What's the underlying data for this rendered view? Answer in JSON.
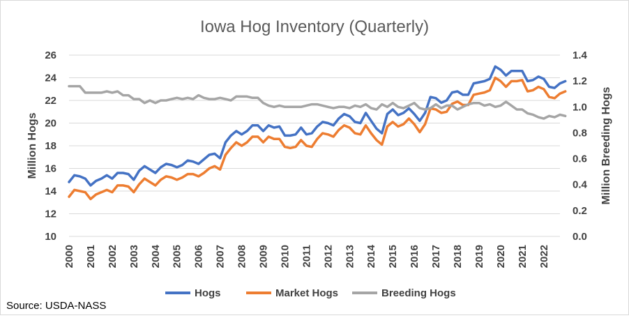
{
  "chart_data": {
    "type": "line",
    "title": "Iowa Hog Inventory (Quarterly)",
    "ylabel": "Million Hogs",
    "y2label": "Million Breeding Hogs",
    "ylim": [
      10,
      26
    ],
    "y2lim": [
      0.0,
      1.4
    ],
    "y_ticks": [
      "10",
      "12",
      "14",
      "16",
      "18",
      "20",
      "22",
      "24",
      "26"
    ],
    "y2_ticks": [
      "0.0",
      "0.2",
      "0.4",
      "0.6",
      "0.8",
      "1.0",
      "1.2",
      "1.4"
    ],
    "x_ticks": [
      "2000",
      "2001",
      "2002",
      "2003",
      "2004",
      "2005",
      "2006",
      "2007",
      "2008",
      "2009",
      "2010",
      "2011",
      "2012",
      "2013",
      "2014",
      "2015",
      "2016",
      "2017",
      "2018",
      "2019",
      "2020",
      "2021",
      "2022"
    ],
    "xlim": [
      2000,
      2022.75
    ],
    "grid": true,
    "legend_position": "bottom",
    "source": "Source: USDA-NASS",
    "series": [
      {
        "name": "Hogs",
        "axis": "left",
        "color": "#4472C4",
        "values": [
          14.8,
          15.4,
          15.3,
          15.1,
          14.5,
          14.9,
          15.1,
          15.4,
          15.1,
          15.6,
          15.6,
          15.5,
          15.0,
          15.8,
          16.2,
          15.9,
          15.6,
          16.1,
          16.4,
          16.3,
          16.1,
          16.3,
          16.7,
          16.6,
          16.4,
          16.8,
          17.2,
          17.3,
          16.9,
          18.3,
          18.9,
          19.3,
          19.0,
          19.3,
          19.8,
          19.8,
          19.3,
          19.8,
          19.6,
          19.7,
          18.9,
          18.9,
          19.0,
          19.6,
          19.0,
          19.1,
          19.7,
          20.1,
          20.0,
          19.8,
          20.4,
          20.8,
          20.6,
          20.1,
          20.0,
          20.9,
          20.2,
          19.5,
          19.1,
          20.8,
          21.2,
          20.7,
          20.9,
          21.3,
          20.8,
          20.2,
          20.9,
          22.3,
          22.2,
          21.8,
          22.0,
          22.7,
          22.8,
          22.5,
          22.5,
          23.5,
          23.6,
          23.7,
          23.9,
          25.0,
          24.7,
          24.2,
          24.6,
          24.6,
          24.6,
          23.7,
          23.8,
          24.1,
          23.9,
          23.2,
          23.1,
          23.5,
          23.7
        ]
      },
      {
        "name": "Market Hogs",
        "axis": "left",
        "color": "#ED7D31",
        "values": [
          13.5,
          14.1,
          14.0,
          13.9,
          13.3,
          13.7,
          13.9,
          14.1,
          13.9,
          14.5,
          14.5,
          14.4,
          13.9,
          14.6,
          15.1,
          14.8,
          14.5,
          15.0,
          15.3,
          15.2,
          15.0,
          15.2,
          15.5,
          15.5,
          15.3,
          15.6,
          16.0,
          16.2,
          15.9,
          17.2,
          17.8,
          18.3,
          18.0,
          18.3,
          18.8,
          18.8,
          18.3,
          18.8,
          18.6,
          18.6,
          17.9,
          17.8,
          17.9,
          18.5,
          18.0,
          17.9,
          18.6,
          19.1,
          19.0,
          18.8,
          19.4,
          19.8,
          19.6,
          19.1,
          19.0,
          19.8,
          19.1,
          18.5,
          18.1,
          19.7,
          20.1,
          19.7,
          19.9,
          20.4,
          19.9,
          19.2,
          19.9,
          21.3,
          21.2,
          20.9,
          21.0,
          21.7,
          21.9,
          21.6,
          21.6,
          22.5,
          22.6,
          22.7,
          22.9,
          24.0,
          23.7,
          23.2,
          23.7,
          23.7,
          23.8,
          22.8,
          22.9,
          23.2,
          23.0,
          22.3,
          22.2,
          22.6,
          22.8
        ]
      },
      {
        "name": "Breeding Hogs",
        "axis": "right",
        "color": "#A5A5A5",
        "values": [
          1.16,
          1.16,
          1.16,
          1.11,
          1.11,
          1.11,
          1.11,
          1.12,
          1.11,
          1.12,
          1.09,
          1.09,
          1.06,
          1.06,
          1.03,
          1.05,
          1.03,
          1.05,
          1.05,
          1.06,
          1.07,
          1.06,
          1.07,
          1.06,
          1.09,
          1.07,
          1.06,
          1.06,
          1.07,
          1.06,
          1.05,
          1.08,
          1.08,
          1.08,
          1.07,
          1.07,
          1.03,
          1.01,
          1.0,
          1.01,
          1.0,
          1.0,
          1.0,
          1.0,
          1.01,
          1.02,
          1.02,
          1.01,
          1.0,
          0.99,
          1.0,
          1.0,
          0.99,
          1.01,
          1.0,
          1.02,
          0.99,
          0.98,
          1.02,
          1.0,
          1.03,
          1.0,
          0.99,
          1.01,
          1.03,
          0.99,
          0.98,
          0.99,
          1.02,
          0.99,
          1.01,
          1.01,
          0.98,
          1.0,
          1.02,
          1.03,
          1.03,
          1.01,
          1.02,
          1.0,
          1.01,
          1.04,
          1.01,
          0.98,
          0.98,
          0.95,
          0.94,
          0.92,
          0.91,
          0.93,
          0.92,
          0.94,
          0.93
        ]
      }
    ]
  }
}
